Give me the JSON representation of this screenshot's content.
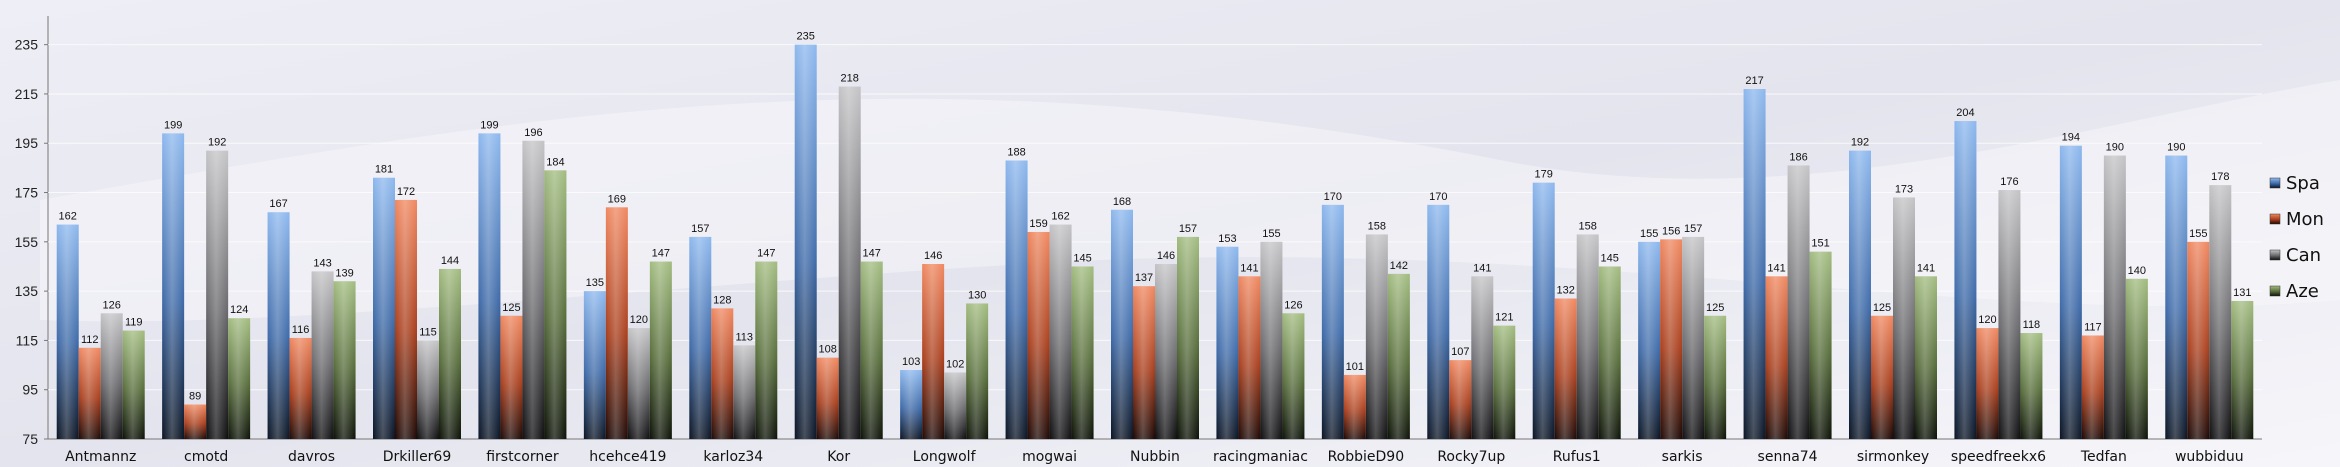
{
  "chart_data": {
    "type": "bar",
    "title": "",
    "xlabel": "",
    "ylabel": "",
    "ylim": [
      75,
      245
    ],
    "yticks": [
      75,
      95,
      115,
      135,
      155,
      175,
      195,
      215,
      235
    ],
    "grid": true,
    "legend_position": "right",
    "categories": [
      "Antmannz",
      "cmotd",
      "davros",
      "Drkiller69",
      "firstcorner",
      "hcehce419",
      "karloz34",
      "Kor",
      "Longwolf",
      "mogwai",
      "Nubbin",
      "racingmaniac",
      "RobbieD90",
      "Rocky7up",
      "Rufus1",
      "sarkis",
      "senna74",
      "sirmonkey",
      "speedfreekx6",
      "Tedfan",
      "wubbiduu"
    ],
    "series": [
      {
        "name": "Spa",
        "color": "#7aaae6",
        "values": [
          162,
          199,
          167,
          181,
          199,
          135,
          157,
          235,
          103,
          188,
          168,
          153,
          170,
          170,
          179,
          155,
          217,
          192,
          204,
          194,
          190
        ]
      },
      {
        "name": "Mon",
        "color": "#e8724a",
        "values": [
          112,
          89,
          116,
          172,
          125,
          169,
          128,
          108,
          146,
          159,
          137,
          141,
          101,
          107,
          132,
          156,
          141,
          125,
          120,
          117,
          155
        ]
      },
      {
        "name": "Can",
        "color": "#a8a8a8",
        "values": [
          126,
          192,
          143,
          115,
          196,
          120,
          113,
          218,
          102,
          162,
          146,
          155,
          158,
          141,
          158,
          157,
          186,
          173,
          176,
          190,
          178
        ]
      },
      {
        "name": "Aze",
        "color": "#8fa86e",
        "values": [
          119,
          124,
          139,
          144,
          184,
          147,
          147,
          147,
          130,
          145,
          157,
          126,
          142,
          121,
          145,
          125,
          151,
          141,
          118,
          140,
          131
        ]
      }
    ]
  }
}
